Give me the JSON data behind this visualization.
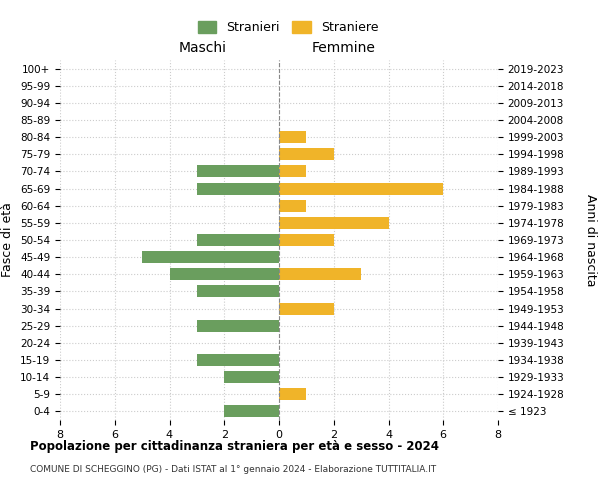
{
  "age_groups": [
    "100+",
    "95-99",
    "90-94",
    "85-89",
    "80-84",
    "75-79",
    "70-74",
    "65-69",
    "60-64",
    "55-59",
    "50-54",
    "45-49",
    "40-44",
    "35-39",
    "30-34",
    "25-29",
    "20-24",
    "15-19",
    "10-14",
    "5-9",
    "0-4"
  ],
  "birth_years": [
    "≤ 1923",
    "1924-1928",
    "1929-1933",
    "1934-1938",
    "1939-1943",
    "1944-1948",
    "1949-1953",
    "1954-1958",
    "1959-1963",
    "1964-1968",
    "1969-1973",
    "1974-1978",
    "1979-1983",
    "1984-1988",
    "1989-1993",
    "1994-1998",
    "1999-2003",
    "2004-2008",
    "2009-2013",
    "2014-2018",
    "2019-2023"
  ],
  "maschi": [
    0,
    0,
    0,
    0,
    0,
    0,
    3,
    3,
    0,
    0,
    3,
    5,
    4,
    3,
    0,
    3,
    0,
    3,
    2,
    0,
    2
  ],
  "femmine": [
    0,
    0,
    0,
    0,
    1,
    2,
    1,
    6,
    1,
    4,
    2,
    0,
    3,
    0,
    2,
    0,
    0,
    0,
    0,
    1,
    0
  ],
  "color_maschi": "#6a9e5e",
  "color_femmine": "#f0b429",
  "title": "Popolazione per cittadinanza straniera per età e sesso - 2024",
  "subtitle": "COMUNE DI SCHEGGINO (PG) - Dati ISTAT al 1° gennaio 2024 - Elaborazione TUTTITALIA.IT",
  "label_maschi": "Stranieri",
  "label_femmine": "Straniere",
  "xlabel_left": "Maschi",
  "xlabel_right": "Femmine",
  "ylabel_left": "Fasce di età",
  "ylabel_right": "Anni di nascita",
  "xlim": 8,
  "background_color": "#ffffff",
  "grid_color": "#cccccc"
}
